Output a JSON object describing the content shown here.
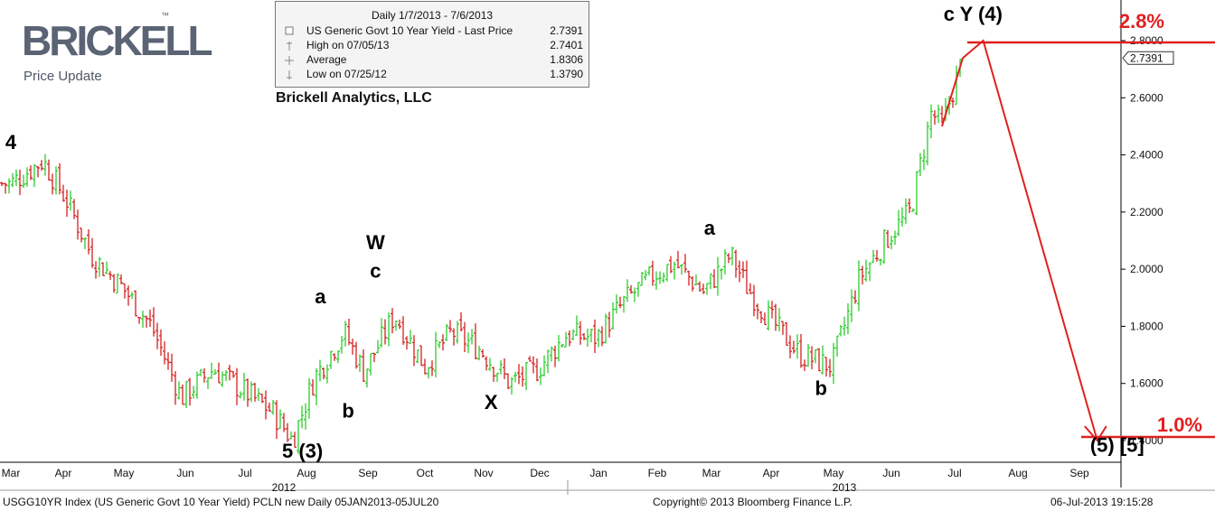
{
  "brand": {
    "logo_text": "BRICKELL",
    "tagline": "Price Update"
  },
  "legend": {
    "header": "Daily 1/7/2013 - 7/6/2013",
    "rows": [
      {
        "label": "US Generic Govt 10 Year Yield - Last Price",
        "value": "2.7391"
      },
      {
        "label": "High on 07/05/13",
        "value": "2.7401"
      },
      {
        "label": "Average",
        "value": "1.8306"
      },
      {
        "label": "Low on 07/25/12",
        "value": "1.3790"
      }
    ]
  },
  "company": "Brickell Analytics, LLC",
  "colors": {
    "up": "#2ecc2e",
    "down": "#d42020",
    "target": "#e02020",
    "axis": "#000000"
  },
  "chart_data": {
    "type": "bar",
    "ohlc_daily_close_approx": {
      "x": [
        "2012-03-01",
        "2012-03-20",
        "2012-04-02",
        "2012-04-15",
        "2012-05-01",
        "2012-05-15",
        "2012-05-30",
        "2012-06-15",
        "2012-07-01",
        "2012-07-15",
        "2012-07-25",
        "2012-08-05",
        "2012-08-20",
        "2012-08-30",
        "2012-09-15",
        "2012-10-01",
        "2012-10-15",
        "2012-10-30",
        "2012-11-15",
        "2012-11-30",
        "2012-12-15",
        "2012-12-31",
        "2013-01-15",
        "2013-01-30",
        "2013-02-10",
        "2013-02-25",
        "2013-03-11",
        "2013-03-20",
        "2013-04-01",
        "2013-04-15",
        "2013-04-30",
        "2013-05-15",
        "2013-05-31",
        "2013-06-10",
        "2013-06-20",
        "2013-06-25",
        "2013-07-05"
      ],
      "y": [
        2.3,
        2.38,
        2.25,
        2.05,
        1.93,
        1.8,
        1.55,
        1.65,
        1.57,
        1.5,
        1.4,
        1.62,
        1.78,
        1.64,
        1.84,
        1.66,
        1.78,
        1.72,
        1.6,
        1.65,
        1.77,
        1.76,
        1.89,
        1.98,
        2.02,
        1.92,
        2.05,
        1.93,
        1.82,
        1.7,
        1.66,
        1.97,
        2.12,
        2.2,
        2.55,
        2.5,
        2.7391
      ]
    },
    "projection": {
      "x": [
        "2013-06-25",
        "2013-07-05",
        "2013-07-15",
        "2013-09-10"
      ],
      "y": [
        2.5,
        2.7391,
        2.8,
        1.4
      ]
    },
    "ylim": [
      1.38,
      2.86
    ],
    "y_ticks": [
      "2.8000",
      "2.6000",
      "2.4000",
      "2.2000",
      "2.0000",
      "1.8000",
      "1.6000",
      "1.4000"
    ],
    "last_price_label": "2.7391",
    "x_ticks": [
      "Mar",
      "Apr",
      "May",
      "Jun",
      "Jul",
      "Aug",
      "Sep",
      "Oct",
      "Nov",
      "Dec",
      "Jan",
      "Feb",
      "Mar",
      "Apr",
      "May",
      "Jun",
      "Jul",
      "Aug",
      "Sep"
    ],
    "year_labels": [
      "2012",
      "2013"
    ],
    "target_lines": [
      {
        "value": 2.8,
        "label": "2.8%"
      },
      {
        "value": 1.0,
        "label": "1.0%"
      }
    ],
    "annotations": [
      {
        "text": "4",
        "x": "2012-03-01",
        "y": 2.42
      },
      {
        "text": "a",
        "x": "2012-08-08",
        "y": 1.88
      },
      {
        "text": "b",
        "x": "2012-08-22",
        "y": 1.48
      },
      {
        "text": "W",
        "x": "2012-09-05",
        "y": 2.07
      },
      {
        "text": "c",
        "x": "2012-09-05",
        "y": 1.97
      },
      {
        "text": "5 (3)",
        "x": "2012-07-30",
        "y": 1.34
      },
      {
        "text": "X",
        "x": "2012-11-05",
        "y": 1.51
      },
      {
        "text": "a",
        "x": "2013-02-28",
        "y": 2.12
      },
      {
        "text": "b",
        "x": "2013-04-25",
        "y": 1.56
      },
      {
        "text": "c  Y (4)",
        "x": "2013-07-10",
        "y": 2.87
      },
      {
        "text": "(5)  [5]",
        "x": "2013-09-20",
        "y": 1.36
      }
    ]
  },
  "footer": {
    "left": "USGG10YR Index (US Generic Govt 10 Year Yield) PCLN new  Daily 05JAN2013-05JUL20",
    "center": "Copyright© 2013 Bloomberg Finance L.P.",
    "right": "06-Jul-2013 19:15:28"
  }
}
